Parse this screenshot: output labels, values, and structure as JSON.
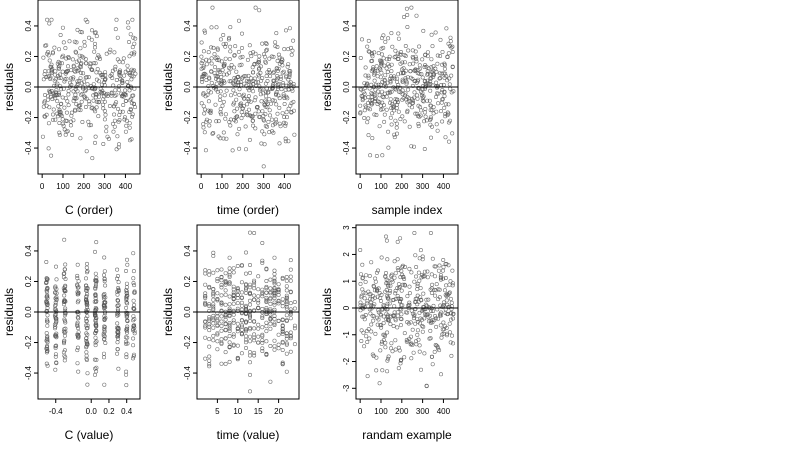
{
  "figure": {
    "layout": "2x3 grid of residual scatter plots",
    "marker": "open circle",
    "point_color": "#555555",
    "reference_line": "horizontal line at residuals = 0"
  },
  "chart_data": [
    {
      "type": "scatter",
      "xlabel": "C (order)",
      "ylabel": "residuals",
      "xlim": [
        -20,
        470
      ],
      "ylim": [
        -0.57,
        0.57
      ],
      "xticks": [
        0,
        100,
        200,
        300,
        400
      ],
      "yticks": [
        -0.4,
        -0.2,
        0.0,
        0.2,
        0.4
      ],
      "xtick_labels": [
        "0",
        "100",
        "200",
        "300",
        "400"
      ],
      "ytick_labels": [
        "-0.4",
        "-0.2",
        "0.0",
        "0.2",
        "0.4"
      ],
      "hline": 0,
      "n_points": 450,
      "x_range": [
        0,
        449
      ],
      "y_range_observed": [
        -0.52,
        0.44
      ],
      "spread_sd": 0.18,
      "grid": false
    },
    {
      "type": "scatter",
      "xlabel": "time (order)",
      "ylabel": "residuals",
      "xlim": [
        -20,
        470
      ],
      "ylim": [
        -0.57,
        0.57
      ],
      "xticks": [
        0,
        100,
        200,
        300,
        400
      ],
      "yticks": [
        -0.4,
        -0.2,
        0.0,
        0.2,
        0.4
      ],
      "xtick_labels": [
        "0",
        "100",
        "200",
        "300",
        "400"
      ],
      "ytick_labels": [
        "-0.4",
        "-0.2",
        "0.0",
        "0.2",
        "0.4"
      ],
      "hline": 0,
      "n_points": 450,
      "x_range": [
        0,
        449
      ],
      "y_range_observed": [
        -0.52,
        0.52
      ],
      "spread_sd": 0.18,
      "grid": false
    },
    {
      "type": "scatter",
      "xlabel": "sample index",
      "ylabel": "residuals",
      "xlim": [
        -20,
        470
      ],
      "ylim": [
        -0.57,
        0.57
      ],
      "xticks": [
        0,
        100,
        200,
        300,
        400
      ],
      "yticks": [
        -0.4,
        -0.2,
        0.0,
        0.2,
        0.4
      ],
      "xtick_labels": [
        "0",
        "100",
        "200",
        "300",
        "400"
      ],
      "ytick_labels": [
        "-0.4",
        "-0.2",
        "0.0",
        "0.2",
        "0.4"
      ],
      "hline": 0,
      "n_points": 450,
      "x_range": [
        0,
        449
      ],
      "y_range_observed": [
        -0.52,
        0.52
      ],
      "spread_sd": 0.18,
      "grid": false
    },
    {
      "type": "scatter",
      "xlabel": "C (value)",
      "ylabel": "residuals",
      "xlim": [
        -0.6,
        0.55
      ],
      "ylim": [
        -0.57,
        0.57
      ],
      "xticks": [
        -0.4,
        0.0,
        0.2,
        0.4
      ],
      "yticks": [
        -0.4,
        -0.2,
        0.0,
        0.2,
        0.4
      ],
      "xtick_labels": [
        "-0.4",
        "0.0",
        "0.2",
        "0.4"
      ],
      "ytick_labels": [
        "-0.4",
        "-0.2",
        "0.0",
        "0.2",
        "0.4"
      ],
      "hline": 0,
      "n_points": 450,
      "x_levels": [
        -0.5,
        -0.4,
        -0.3,
        -0.15,
        -0.05,
        0.05,
        0.15,
        0.3,
        0.4,
        0.48
      ],
      "y_range_observed": [
        -0.52,
        0.52
      ],
      "spread_sd": 0.18,
      "grid": false
    },
    {
      "type": "scatter",
      "xlabel": "time (value)",
      "ylabel": "residuals",
      "xlim": [
        0,
        25
      ],
      "ylim": [
        -0.57,
        0.57
      ],
      "xticks": [
        5,
        10,
        15,
        20
      ],
      "yticks": [
        -0.4,
        -0.2,
        0.0,
        0.2,
        0.4
      ],
      "xtick_labels": [
        "5",
        "10",
        "15",
        "20"
      ],
      "ytick_labels": [
        "-0.4",
        "-0.2",
        "0.0",
        "0.2",
        "0.4"
      ],
      "hline": 0,
      "n_points": 450,
      "x_levels_range": [
        2,
        24
      ],
      "y_range_observed": [
        -0.52,
        0.52
      ],
      "spread_sd": 0.18,
      "grid": false
    },
    {
      "type": "scatter",
      "xlabel": "randam example",
      "ylabel": "residuals",
      "xlim": [
        -20,
        470
      ],
      "ylim": [
        -3.4,
        3.1
      ],
      "xticks": [
        0,
        100,
        200,
        300,
        400
      ],
      "yticks": [
        -3,
        -2,
        -1,
        0,
        1,
        2,
        3
      ],
      "xtick_labels": [
        "0",
        "100",
        "200",
        "300",
        "400"
      ],
      "ytick_labels": [
        "-3",
        "-2",
        "-1",
        "0",
        "1",
        "2",
        "3"
      ],
      "hline": 0,
      "n_points": 450,
      "x_range": [
        0,
        449
      ],
      "y_range_observed": [
        -3.2,
        2.8
      ],
      "spread_sd": 1.0,
      "grid": false
    }
  ]
}
